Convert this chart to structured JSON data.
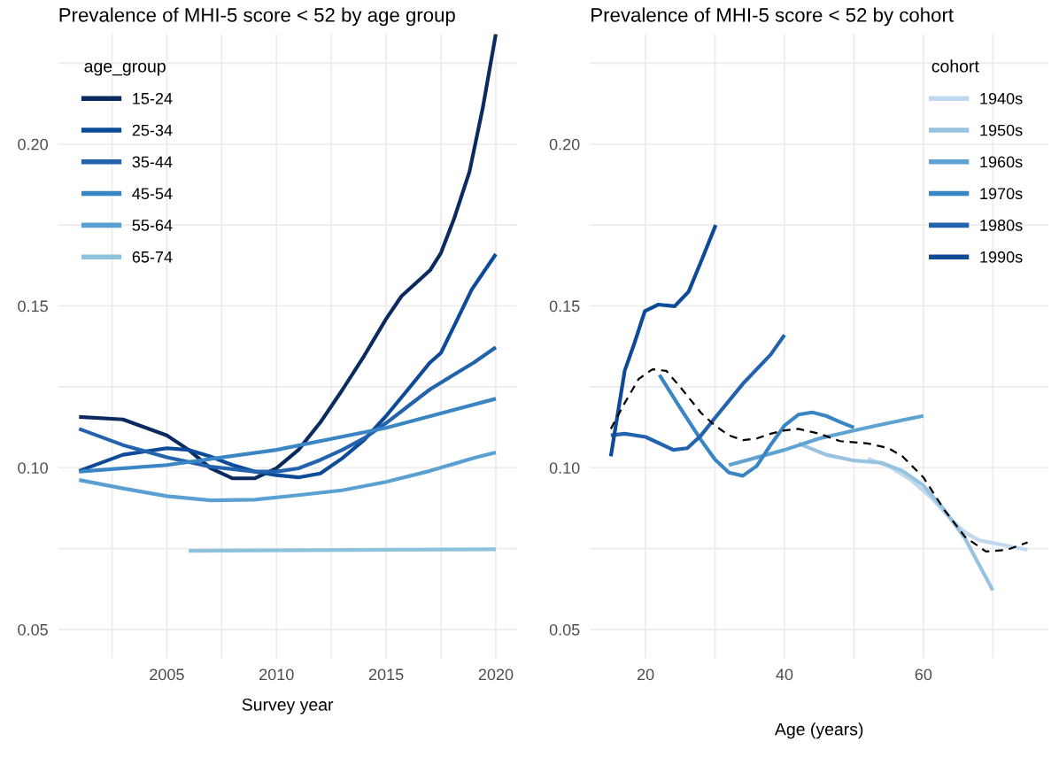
{
  "chart_data": [
    {
      "type": "line",
      "title": "Prevalence of MHI-5 score < 52 by age group",
      "xlabel": "Survey year",
      "legend_title": "age_group",
      "legend": "top left",
      "grid": true,
      "xlim": [
        2000.05,
        2020.95
      ],
      "ylim": [
        0.041,
        0.234
      ],
      "xticks": [
        {
          "value": 2002.5,
          "label": null
        },
        2005,
        {
          "value": 2007.5,
          "label": null
        },
        2010,
        {
          "value": 2012.5,
          "label": null
        },
        2015,
        {
          "value": 2017.5,
          "label": null
        },
        2020
      ],
      "yticks": [
        {
          "value": 0.05,
          "label": "0.05"
        },
        {
          "value": 0.075,
          "label": null
        },
        {
          "value": 0.1,
          "label": "0.10"
        },
        {
          "value": 0.125,
          "label": null
        },
        {
          "value": 0.15,
          "label": "0.15"
        },
        {
          "value": 0.175,
          "label": null
        },
        {
          "value": 0.2,
          "label": "0.20"
        },
        {
          "value": 0.225,
          "label": null
        }
      ],
      "series": [
        {
          "name": "15-24",
          "color": "#0b2b60",
          "x": [
            2001,
            2003,
            2005,
            2006,
            2007,
            2008,
            2009,
            2010,
            2011,
            2012,
            2013,
            2014,
            2015,
            2015.7,
            2017,
            2017.5,
            2018.1,
            2018.8,
            2019.4,
            2020
          ],
          "values": [
            0.1157,
            0.1149,
            0.11,
            0.1055,
            0.0998,
            0.0967,
            0.0967,
            0.0998,
            0.1055,
            0.114,
            0.124,
            0.1346,
            0.146,
            0.153,
            0.161,
            0.1664,
            0.177,
            0.1915,
            0.211,
            0.234
          ]
        },
        {
          "name": "25-34",
          "color": "#0d4a97",
          "x": [
            2001,
            2003,
            2005,
            2006,
            2007,
            2008,
            2009,
            2010,
            2011,
            2012,
            2013,
            2014,
            2015,
            2016,
            2017,
            2017.5,
            2018.1,
            2018.9,
            2020
          ],
          "values": [
            0.099,
            0.104,
            0.106,
            0.1055,
            0.1034,
            0.1008,
            0.0988,
            0.0977,
            0.097,
            0.0982,
            0.1029,
            0.1086,
            0.116,
            0.1242,
            0.1325,
            0.1355,
            0.1438,
            0.155,
            0.166
          ]
        },
        {
          "name": "35-44",
          "color": "#2363ad",
          "x": [
            2001,
            2003,
            2005,
            2007,
            2009,
            2010,
            2011,
            2012,
            2013,
            2014,
            2015,
            2016,
            2017,
            2018,
            2019,
            2020
          ],
          "values": [
            0.112,
            0.107,
            0.1032,
            0.1003,
            0.0988,
            0.0988,
            0.0998,
            0.1024,
            0.1055,
            0.1091,
            0.1138,
            0.119,
            0.1242,
            0.1284,
            0.1325,
            0.1372
          ]
        },
        {
          "name": "45-54",
          "color": "#3a85c3",
          "x": [
            2001,
            2005,
            2010,
            2015,
            2020
          ],
          "values": [
            0.0988,
            0.1008,
            0.1055,
            0.1123,
            0.1213
          ]
        },
        {
          "name": "55-64",
          "color": "#5aa0d2",
          "x": [
            2001,
            2003,
            2005,
            2007,
            2009,
            2011,
            2013,
            2015,
            2017,
            2019,
            2020
          ],
          "values": [
            0.0962,
            0.0936,
            0.0912,
            0.0899,
            0.0901,
            0.0915,
            0.093,
            0.0956,
            0.099,
            0.103,
            0.1047
          ]
        },
        {
          "name": "65-74",
          "color": "#8ec1de",
          "x": [
            2006,
            2020
          ],
          "values": [
            0.0743,
            0.0748
          ]
        }
      ]
    },
    {
      "type": "line",
      "title": "Prevalence of MHI-5 score < 52 by cohort",
      "xlabel": "Age (years)",
      "legend_title": "cohort",
      "legend": "top right",
      "grid": true,
      "xlim": [
        12,
        78
      ],
      "ylim": [
        0.041,
        0.234
      ],
      "xticks": [
        20,
        {
          "value": 30,
          "label": null
        },
        40,
        {
          "value": 50,
          "label": null
        },
        60,
        {
          "value": 70,
          "label": null
        }
      ],
      "yticks": [
        {
          "value": 0.05,
          "label": "0.05"
        },
        {
          "value": 0.075,
          "label": null
        },
        {
          "value": 0.1,
          "label": "0.10"
        },
        {
          "value": 0.125,
          "label": null
        },
        {
          "value": 0.15,
          "label": "0.15"
        },
        {
          "value": 0.175,
          "label": null
        },
        {
          "value": 0.2,
          "label": "0.20"
        },
        {
          "value": 0.225,
          "label": null
        }
      ],
      "series": [
        {
          "name": "1940s",
          "color": "#c1d8ee",
          "x": [
            52,
            55,
            58,
            61,
            64,
            66,
            68,
            71,
            75
          ],
          "values": [
            0.1028,
            0.1005,
            0.0965,
            0.091,
            0.084,
            0.08,
            0.0776,
            0.0763,
            0.0746
          ]
        },
        {
          "name": "1950s",
          "color": "#97c3e0",
          "x": [
            42,
            46,
            50,
            54,
            57,
            60,
            63,
            66,
            68,
            70
          ],
          "values": [
            0.1075,
            0.104,
            0.1022,
            0.1015,
            0.099,
            0.0945,
            0.087,
            0.0781,
            0.0701,
            0.0621
          ]
        },
        {
          "name": "1960s",
          "color": "#5fa3d3",
          "x": [
            32,
            40,
            45,
            50,
            55,
            60
          ],
          "values": [
            0.1008,
            0.1055,
            0.109,
            0.1115,
            0.1138,
            0.116
          ]
        },
        {
          "name": "1970s",
          "color": "#3a85c3",
          "x": [
            22,
            25,
            28,
            30,
            32,
            34,
            36,
            38,
            40,
            42,
            44,
            46,
            48,
            50
          ],
          "values": [
            0.1287,
            0.1184,
            0.1085,
            0.1025,
            0.0985,
            0.0975,
            0.1005,
            0.107,
            0.113,
            0.1164,
            0.1171,
            0.116,
            0.1141,
            0.1124
          ]
        },
        {
          "name": "1980s",
          "color": "#2363ad",
          "x": [
            15,
            17,
            20,
            24,
            26,
            28,
            30,
            34,
            38,
            40
          ],
          "values": [
            0.11,
            0.1105,
            0.1095,
            0.1055,
            0.106,
            0.11,
            0.1154,
            0.1259,
            0.1349,
            0.141
          ]
        },
        {
          "name": "1990s",
          "color": "#0d4a97",
          "x": [
            15,
            17,
            18.4,
            19.9,
            21.8,
            24.2,
            26.2,
            28.1,
            30.1
          ],
          "values": [
            0.1035,
            0.13,
            0.1385,
            0.1484,
            0.1504,
            0.1499,
            0.1544,
            0.1643,
            0.175
          ]
        },
        {
          "color": "#000000",
          "line_style": "dashed",
          "x": [
            15,
            17,
            19,
            21,
            23,
            25,
            28,
            30,
            32,
            34,
            36,
            38,
            40,
            42,
            45,
            48,
            52,
            55,
            57,
            60,
            63,
            66,
            69,
            72,
            75
          ],
          "values": [
            0.112,
            0.12,
            0.1274,
            0.1304,
            0.1299,
            0.1249,
            0.1169,
            0.113,
            0.11,
            0.1085,
            0.109,
            0.1105,
            0.1115,
            0.112,
            0.1105,
            0.1082,
            0.1075,
            0.106,
            0.1035,
            0.097,
            0.087,
            0.0786,
            0.0741,
            0.0746,
            0.0769
          ]
        }
      ]
    }
  ]
}
